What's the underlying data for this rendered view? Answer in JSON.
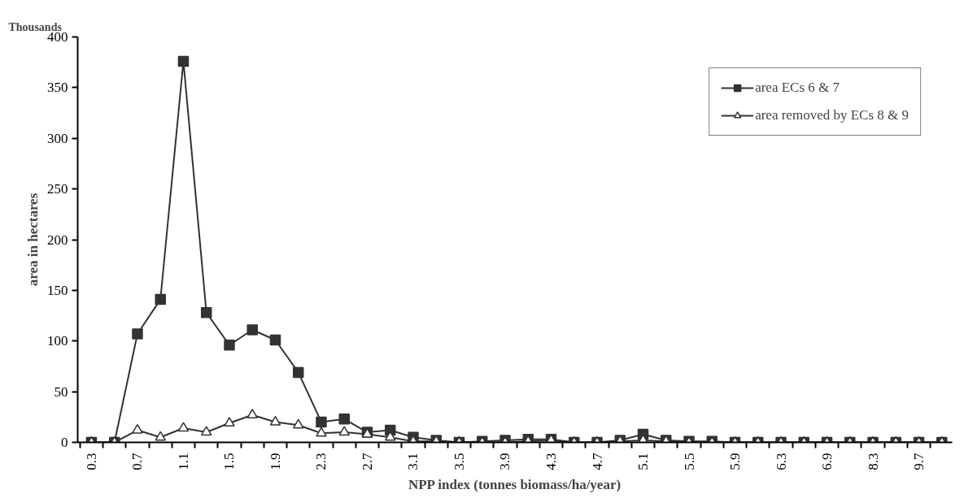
{
  "chart_data": {
    "type": "line",
    "xlabel": "NPP index (tonnes biomass/ha/year)",
    "ylabel": "area in hectares",
    "annotations": [
      "Thousands"
    ],
    "categories": [
      "0.3",
      null,
      "0.7",
      null,
      "1.1",
      null,
      "1.5",
      null,
      "1.9",
      null,
      "2.3",
      null,
      "2.7",
      null,
      "3.1",
      null,
      "3.5",
      null,
      "3.9",
      null,
      "4.3",
      null,
      "4.7",
      null,
      "5.1",
      null,
      "5.5",
      null,
      "5.9",
      null,
      "6.3",
      null,
      "6.9",
      null,
      "8.3",
      null,
      "9.7",
      null
    ],
    "series": [
      {
        "name": "area ECs 6 & 7",
        "color": "#333333",
        "marker": "square",
        "values": [
          0,
          0,
          107,
          141,
          376,
          128,
          96,
          111,
          101,
          69,
          20,
          23,
          10,
          12,
          5,
          2,
          0,
          1,
          2,
          3,
          3,
          0,
          0,
          2,
          8,
          2,
          1,
          1,
          0,
          0,
          0,
          0,
          0,
          0,
          0,
          0,
          0,
          0
        ]
      },
      {
        "name": "area removed by ECs 8 & 9",
        "color": "#333333",
        "marker": "triangle",
        "values": [
          0,
          0,
          12,
          5,
          14,
          10,
          19,
          27,
          20,
          17,
          9,
          10,
          8,
          5,
          1,
          1,
          0,
          0,
          0,
          1,
          2,
          0,
          0,
          1,
          2,
          1,
          0,
          0,
          0,
          0,
          0,
          0,
          0,
          0,
          0,
          0,
          0,
          0
        ]
      }
    ],
    "ylim": [
      0,
      400
    ],
    "yticks": [
      0,
      50,
      100,
      150,
      200,
      250,
      300,
      350,
      400
    ],
    "grid": false,
    "legend": "top right"
  }
}
